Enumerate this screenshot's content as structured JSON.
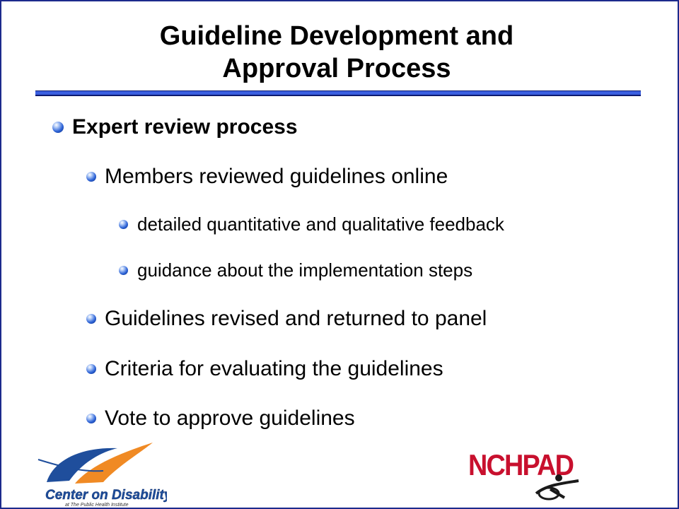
{
  "slide": {
    "title_line1": "Guideline Development and",
    "title_line2": "Approval Process",
    "bullets": {
      "l1": "Expert review process",
      "l2a": "Members reviewed guidelines online",
      "l3a": "detailed quantitative and qualitative feedback",
      "l3b": "guidance about the implementation steps",
      "l2b": "Guidelines revised and returned to panel",
      "l2c": "Criteria for evaluating the guidelines",
      "l2d": "Vote to approve guidelines"
    }
  },
  "logos": {
    "center_on_disability": {
      "name": "Center on Disability",
      "tagline": "at The Public Health Institute"
    },
    "nchpad": {
      "name": "NCHPAD"
    }
  },
  "colors": {
    "frame": "#1c2a8c",
    "rule": "#3a5fe0",
    "bullet": "#2c62d6",
    "nchpad_red": "#c8102e",
    "cod_orange": "#f08a24",
    "cod_blue": "#1f4e9c"
  }
}
